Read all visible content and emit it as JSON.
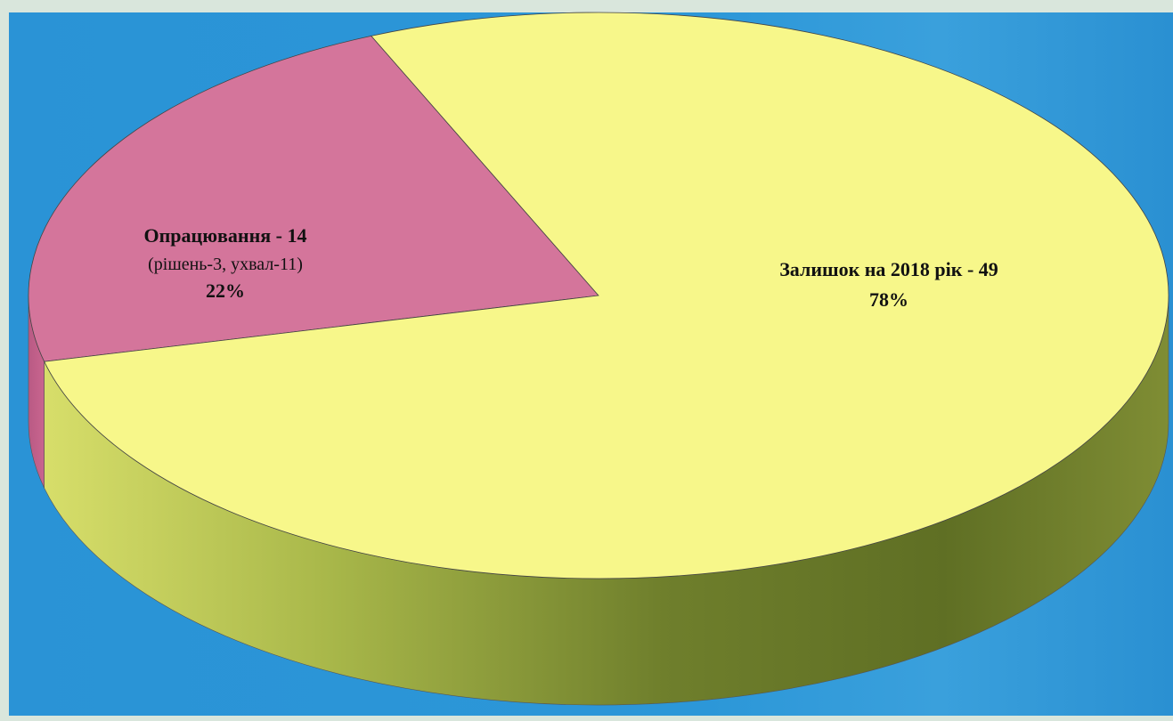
{
  "chart_data": {
    "type": "pie",
    "style": "3d",
    "slices": [
      {
        "label": "Опрацювання - 14",
        "sublabel": "(рішень-3, ухвал-11)",
        "value": 14,
        "percent_label": "22%",
        "color": "#d4759b",
        "side_color": "#b85a82"
      },
      {
        "label": "Залишок на 2018 рік - 49",
        "value": 49,
        "percent_label": "78%",
        "color": "#f7f78a",
        "side_color": "#6b7a2a"
      }
    ],
    "background_color": "#2a93d6"
  }
}
